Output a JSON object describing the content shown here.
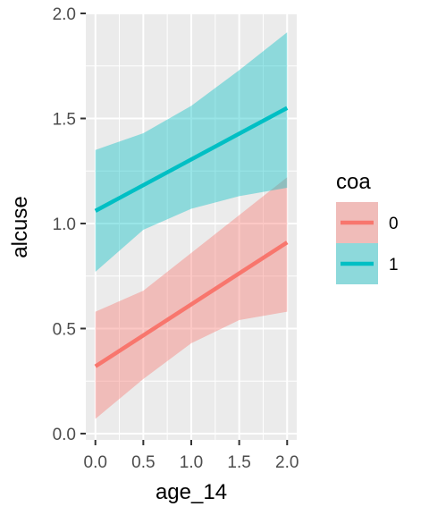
{
  "chart_data": {
    "type": "line",
    "xlabel": "age_14",
    "ylabel": "alcuse",
    "xlim": [
      -0.1,
      2.1
    ],
    "ylim": [
      -0.03,
      2.0
    ],
    "x_ticks": [
      0.0,
      0.5,
      1.0,
      1.5,
      2.0
    ],
    "x_tick_labels": [
      "0.0",
      "0.5",
      "1.0",
      "1.5",
      "2.0"
    ],
    "y_ticks": [
      0.0,
      0.5,
      1.0,
      1.5,
      2.0
    ],
    "y_tick_labels": [
      "0.0",
      "0.5",
      "1.0",
      "1.5",
      "2.0"
    ],
    "grid": true,
    "legend": {
      "title": "coa",
      "position": "right"
    },
    "series": [
      {
        "name": "0",
        "color": "#F8766D",
        "x": [
          0.0,
          2.0
        ],
        "y": [
          0.32,
          0.91
        ],
        "ribbon": {
          "x": [
            0.0,
            0.5,
            1.0,
            1.5,
            2.0
          ],
          "lower": [
            0.07,
            0.26,
            0.43,
            0.54,
            0.58
          ],
          "upper": [
            0.58,
            0.68,
            0.86,
            1.04,
            1.22
          ]
        }
      },
      {
        "name": "1",
        "color": "#00BFC4",
        "x": [
          0.0,
          2.0
        ],
        "y": [
          1.06,
          1.55
        ],
        "ribbon": {
          "x": [
            0.0,
            0.5,
            1.0,
            1.5,
            2.0
          ],
          "lower": [
            0.77,
            0.97,
            1.07,
            1.13,
            1.17
          ],
          "upper": [
            1.35,
            1.43,
            1.56,
            1.73,
            1.91
          ]
        }
      }
    ]
  }
}
